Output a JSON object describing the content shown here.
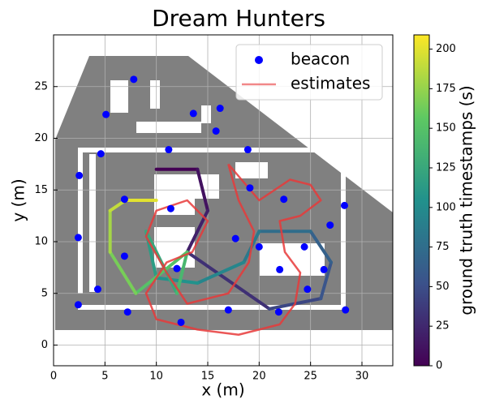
{
  "chart_data": {
    "type": "scatter",
    "title": "Dream Hunters",
    "xlabel": "x (m)",
    "ylabel": "y (m)",
    "xlim": [
      0,
      33
    ],
    "ylim": [
      -2,
      30
    ],
    "xticks": [
      0,
      5,
      10,
      15,
      20,
      25,
      30
    ],
    "yticks": [
      0,
      5,
      10,
      15,
      20,
      25
    ],
    "grid": true,
    "legend": "upper right",
    "series": [
      {
        "name": "beacon",
        "type": "scatter",
        "color": "#0000ff",
        "x": [
          7.8,
          5.1,
          16.2,
          13.6,
          15.8,
          4.6,
          11.2,
          18.9,
          2.5,
          6.9,
          19.1,
          22.4,
          28.3,
          11.4,
          26.9,
          2.4,
          17.7,
          20.0,
          24.4,
          6.9,
          12.0,
          22.0,
          26.3,
          4.3,
          24.7,
          2.4,
          7.2,
          17.0,
          21.9,
          28.4,
          12.4
        ],
        "y": [
          25.7,
          22.3,
          22.9,
          22.4,
          20.7,
          18.5,
          18.9,
          18.9,
          16.4,
          14.1,
          15.2,
          14.1,
          13.5,
          13.2,
          11.6,
          10.4,
          10.3,
          9.5,
          9.5,
          8.6,
          7.4,
          7.3,
          7.3,
          5.4,
          5.4,
          3.9,
          3.2,
          3.4,
          3.2,
          3.4,
          2.2
        ]
      },
      {
        "name": "estimates",
        "type": "line",
        "color": "#e8393a",
        "x": [
          17,
          20,
          23,
          25,
          26,
          24,
          22,
          22.5,
          24,
          23.5,
          22,
          18,
          14,
          10,
          9,
          11,
          13.5,
          15,
          13,
          10,
          9,
          11,
          13,
          17,
          19,
          19.5,
          18,
          17
        ],
        "y": [
          17.5,
          14,
          16,
          15.5,
          14,
          12.5,
          12,
          9,
          7,
          4,
          2,
          1,
          1.5,
          2.5,
          5,
          8,
          9,
          12,
          14,
          13,
          10.5,
          7,
          4,
          5,
          8,
          11,
          14,
          17.5
        ]
      }
    ],
    "trajectory": {
      "colormap": "viridis",
      "x": [
        10,
        14,
        15,
        13,
        21,
        26,
        27,
        25,
        20,
        18.5,
        14,
        10,
        9,
        12,
        13,
        8,
        5.5,
        5.5,
        7,
        10
      ],
      "y": [
        17,
        17,
        13,
        9,
        3.5,
        4.5,
        8,
        11,
        11,
        8,
        6,
        6.5,
        11,
        5,
        9,
        5,
        9,
        13,
        14,
        14
      ],
      "t": [
        0,
        10,
        20,
        30,
        45,
        55,
        65,
        75,
        85,
        95,
        105,
        115,
        125,
        140,
        150,
        165,
        180,
        190,
        200,
        209
      ]
    },
    "colorbar": {
      "label": "ground truth timestamps (s)",
      "lim": [
        0,
        209
      ],
      "ticks": [
        0,
        25,
        50,
        75,
        100,
        125,
        150,
        175,
        200
      ]
    }
  }
}
